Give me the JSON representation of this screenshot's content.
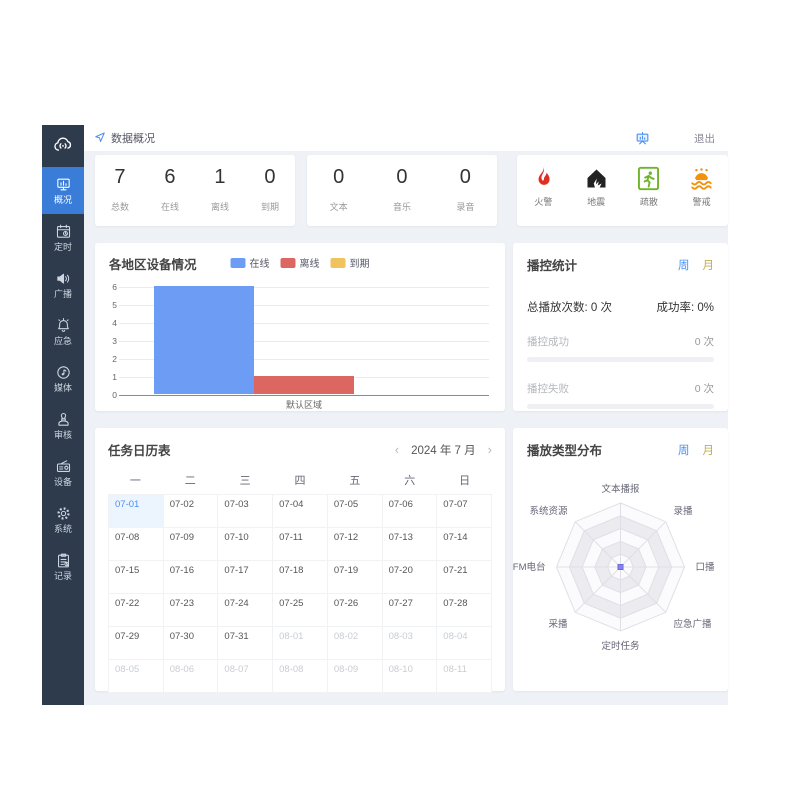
{
  "colors": {
    "accent_blue": "#4a90f2",
    "sidebar_bg": "#2e3b4d",
    "sidebar_active": "#3a7dd8",
    "content_bg": "#eef1f5",
    "tab_week": "#4a90f2",
    "tab_month": "#bfae4e",
    "radar_dot": "#8585ea"
  },
  "header": {
    "title": "数据概况",
    "exit_label": "退出",
    "board_icon": "presentation-board-icon",
    "nav_icon": "location-arrow-icon"
  },
  "sidebar": {
    "logo_icon": "broadcast-cloud-icon",
    "items": [
      {
        "key": "overview",
        "label": "概况",
        "icon": "overview-icon",
        "active": true
      },
      {
        "key": "timing",
        "label": "定时",
        "icon": "timer-icon",
        "active": false
      },
      {
        "key": "broadcast",
        "label": "广播",
        "icon": "speaker-icon",
        "active": false
      },
      {
        "key": "emergency",
        "label": "应急",
        "icon": "emergency-icon",
        "active": false
      },
      {
        "key": "media",
        "label": "媒体",
        "icon": "media-icon",
        "active": false
      },
      {
        "key": "audit",
        "label": "审核",
        "icon": "audit-icon",
        "active": false
      },
      {
        "key": "device",
        "label": "设备",
        "icon": "device-icon",
        "active": false
      },
      {
        "key": "system",
        "label": "系统",
        "icon": "gear-icon",
        "active": false
      },
      {
        "key": "records",
        "label": "记录",
        "icon": "records-icon",
        "active": false
      }
    ]
  },
  "stats": {
    "devices": [
      {
        "value": "7",
        "label": "总数"
      },
      {
        "value": "6",
        "label": "在线"
      },
      {
        "value": "1",
        "label": "离线"
      },
      {
        "value": "0",
        "label": "到期"
      }
    ],
    "media": [
      {
        "value": "0",
        "label": "文本"
      },
      {
        "value": "0",
        "label": "音乐"
      },
      {
        "value": "0",
        "label": "录音"
      }
    ],
    "alerts": [
      {
        "label": "火警",
        "icon": "fire-icon",
        "color": "#df2f23"
      },
      {
        "label": "地震",
        "icon": "earthquake-icon",
        "color": "#222222"
      },
      {
        "label": "疏散",
        "icon": "evacuation-icon",
        "color": "#6fb32a"
      },
      {
        "label": "警戒",
        "icon": "flood-icon",
        "color": "#f0920e"
      }
    ]
  },
  "chart_data": [
    {
      "type": "bar",
      "title": "各地区设备情况",
      "categories": [
        "默认区域"
      ],
      "series": [
        {
          "name": "在线",
          "color": "#6c9cf3",
          "values": [
            6
          ]
        },
        {
          "name": "离线",
          "color": "#dc6662",
          "values": [
            1
          ]
        },
        {
          "name": "到期",
          "color": "#f0c35e",
          "values": [
            0
          ]
        }
      ],
      "ylim": [
        0,
        6
      ],
      "yticks": [
        0,
        1,
        2,
        3,
        4,
        5,
        6
      ],
      "grid": true,
      "legend_position": "top-center"
    },
    {
      "type": "radar",
      "title": "播放类型分布",
      "categories": [
        "文本播报",
        "录播",
        "口播",
        "应急广播",
        "定时任务",
        "采播",
        "FM电台",
        "系统资源"
      ],
      "series": [
        {
          "name": "播放类型",
          "values": [
            0,
            0,
            0,
            0,
            0,
            0,
            0,
            0
          ]
        }
      ],
      "rings": 5,
      "legend_position": "none"
    }
  ],
  "playback": {
    "title": "播控统计",
    "tabs": [
      {
        "label": "周",
        "active": true
      },
      {
        "label": "月",
        "active": false
      }
    ],
    "total_label": "总播放次数:",
    "total_value": "0 次",
    "success_rate_label": "成功率:",
    "success_rate_value": "0%",
    "rows": [
      {
        "label": "播控成功",
        "value": "0 次",
        "progress": 0
      },
      {
        "label": "播控失败",
        "value": "0 次",
        "progress": 0
      }
    ]
  },
  "calendar": {
    "title": "任务日历表",
    "prev": "‹",
    "next": "›",
    "month_label": "2024 年 7 月",
    "weekdays": [
      "一",
      "二",
      "三",
      "四",
      "五",
      "六",
      "日"
    ],
    "days": [
      {
        "date": "07-01",
        "selected": true
      },
      {
        "date": "07-02"
      },
      {
        "date": "07-03"
      },
      {
        "date": "07-04"
      },
      {
        "date": "07-05"
      },
      {
        "date": "07-06"
      },
      {
        "date": "07-07"
      },
      {
        "date": "07-08"
      },
      {
        "date": "07-09"
      },
      {
        "date": "07-10"
      },
      {
        "date": "07-11"
      },
      {
        "date": "07-12"
      },
      {
        "date": "07-13"
      },
      {
        "date": "07-14"
      },
      {
        "date": "07-15"
      },
      {
        "date": "07-16"
      },
      {
        "date": "07-17"
      },
      {
        "date": "07-18"
      },
      {
        "date": "07-19"
      },
      {
        "date": "07-20"
      },
      {
        "date": "07-21"
      },
      {
        "date": "07-22"
      },
      {
        "date": "07-23"
      },
      {
        "date": "07-24"
      },
      {
        "date": "07-25"
      },
      {
        "date": "07-26"
      },
      {
        "date": "07-27"
      },
      {
        "date": "07-28"
      },
      {
        "date": "07-29"
      },
      {
        "date": "07-30"
      },
      {
        "date": "07-31"
      },
      {
        "date": "08-01",
        "muted": true
      },
      {
        "date": "08-02",
        "muted": true
      },
      {
        "date": "08-03",
        "muted": true
      },
      {
        "date": "08-04",
        "muted": true
      },
      {
        "date": "08-05",
        "muted": true
      },
      {
        "date": "08-06",
        "muted": true
      },
      {
        "date": "08-07",
        "muted": true
      },
      {
        "date": "08-08",
        "muted": true
      },
      {
        "date": "08-09",
        "muted": true
      },
      {
        "date": "08-10",
        "muted": true
      },
      {
        "date": "08-11",
        "muted": true
      }
    ]
  },
  "distribution": {
    "tabs": [
      {
        "label": "周",
        "active": true
      },
      {
        "label": "月",
        "active": false
      }
    ]
  }
}
